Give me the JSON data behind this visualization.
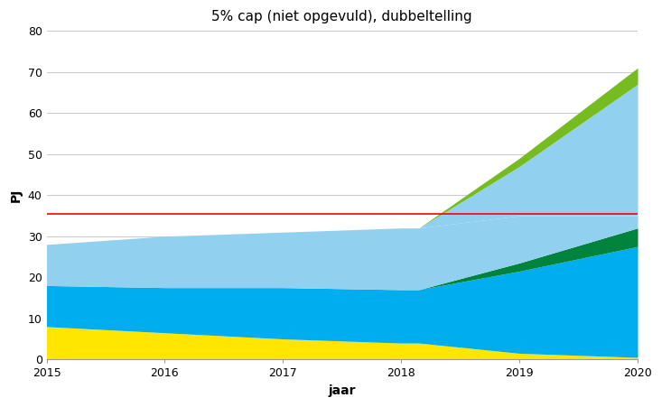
{
  "title": "5% cap (niet opgevuld), dubbeltelling",
  "xlabel": "jaar",
  "ylabel": "PJ",
  "years": [
    2015,
    2016,
    2017,
    2018,
    2018.15,
    2019,
    2020
  ],
  "yellow": [
    8.0,
    6.5,
    5.0,
    4.0,
    4.0,
    1.5,
    0.5
  ],
  "cyan": [
    10.0,
    11.0,
    12.5,
    13.0,
    13.0,
    20.0,
    27.0
  ],
  "dark_green": [
    0.0,
    0.0,
    0.0,
    0.0,
    0.0,
    2.0,
    4.5
  ],
  "light_blue": [
    10.0,
    12.5,
    13.5,
    15.0,
    15.0,
    11.5,
    3.0
  ],
  "sky_blue": [
    0.0,
    0.0,
    0.0,
    0.0,
    0.0,
    12.0,
    32.0
  ],
  "lime_green": [
    0.0,
    0.0,
    0.0,
    0.0,
    0.0,
    2.0,
    4.0
  ],
  "red_line_y": 35.5,
  "ylim": [
    0,
    80
  ],
  "yticks": [
    0,
    10,
    20,
    30,
    40,
    50,
    60,
    70,
    80
  ],
  "color_yellow": "#FFE600",
  "color_cyan": "#00AEEF",
  "color_light_blue": "#92D0F0",
  "color_dark_green": "#00843D",
  "color_sky_blue": "#92D0F0",
  "color_lime": "#76BC21",
  "color_red": "#FF0000",
  "title_fontsize": 11,
  "label_fontsize": 10,
  "tick_fontsize": 9,
  "background_color": "#FFFFFF"
}
